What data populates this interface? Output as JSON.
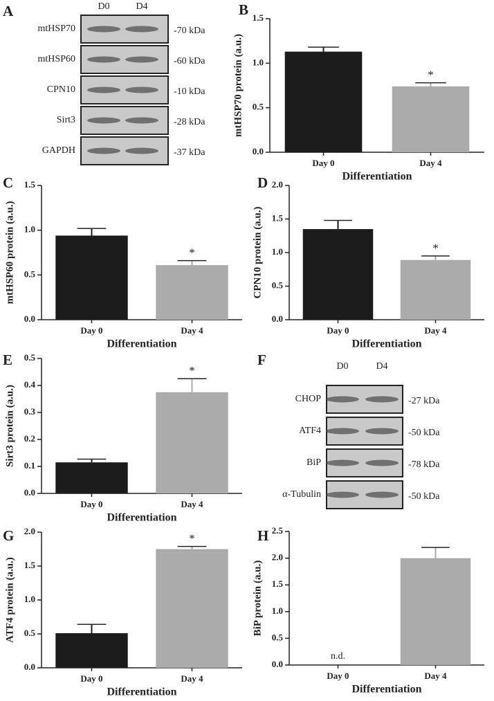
{
  "chart_data": [
    {
      "type": "bar",
      "panel_label": "B",
      "y_label": "mtHSP70 protein (a.u.)",
      "x_label": "Differentiation",
      "categories": [
        "Day 0",
        "Day 4"
      ],
      "values": [
        1.13,
        0.74
      ],
      "errors": [
        0.05,
        0.04
      ],
      "colors": [
        "#1c1c1c",
        "#ababab"
      ],
      "significance": [
        null,
        "*"
      ],
      "ylim": [
        0,
        1.5
      ],
      "yticks": [
        {
          "value": 0,
          "label": "0.0"
        },
        0.5,
        {
          "value": 1,
          "label": "1.0"
        },
        1.5
      ]
    },
    {
      "type": "bar",
      "panel_label": "C",
      "y_label": "mtHSP60 protein (a.u.)",
      "x_label": "Differentiation",
      "categories": [
        "Day 0",
        "Day 4"
      ],
      "values": [
        0.94,
        0.61
      ],
      "errors": [
        0.08,
        0.05
      ],
      "colors": [
        "#1c1c1c",
        "#ababab"
      ],
      "significance": [
        null,
        "*"
      ],
      "ylim": [
        0,
        1.5
      ],
      "yticks": [
        {
          "value": 0,
          "label": "0.0"
        },
        0.5,
        {
          "value": 1,
          "label": "1.0"
        },
        1.5
      ]
    },
    {
      "type": "bar",
      "panel_label": "D",
      "y_label": "CPN10 protein  (a.u.)",
      "x_label": "Differentiation",
      "categories": [
        "Day 0",
        "Day 4"
      ],
      "values": [
        1.35,
        0.89
      ],
      "errors": [
        0.13,
        0.06
      ],
      "colors": [
        "#1c1c1c",
        "#ababab"
      ],
      "significance": [
        null,
        "*"
      ],
      "ylim": [
        0,
        2
      ],
      "yticks": [
        {
          "value": 0,
          "label": "0.0"
        },
        0.5,
        {
          "value": 1,
          "label": "1.0"
        },
        1.5,
        {
          "value": 2,
          "label": "2.0"
        }
      ]
    },
    {
      "type": "bar",
      "panel_label": "E",
      "y_label": "Sirt3 protein (a.u.)",
      "x_label": "Differentiation",
      "categories": [
        "Day 0",
        "Day 4"
      ],
      "values": [
        0.115,
        0.375
      ],
      "errors": [
        0.012,
        0.05
      ],
      "colors": [
        "#1c1c1c",
        "#ababab"
      ],
      "significance": [
        null,
        "*"
      ],
      "ylim": [
        0,
        0.5
      ],
      "yticks": [
        {
          "value": 0,
          "label": "0.0"
        },
        0.1,
        0.2,
        0.3,
        0.4,
        0.5
      ]
    },
    {
      "type": "bar",
      "panel_label": "G",
      "y_label": "ATF4 protein (a.u.)",
      "x_label": "Differentiation",
      "categories": [
        "Day 0",
        "Day 4"
      ],
      "values": [
        0.51,
        1.75
      ],
      "errors": [
        0.13,
        0.04
      ],
      "colors": [
        "#1c1c1c",
        "#ababab"
      ],
      "significance": [
        null,
        "*"
      ],
      "ylim": [
        0,
        2
      ],
      "yticks": [
        {
          "value": 0,
          "label": "0.0"
        },
        0.5,
        {
          "value": 1,
          "label": "1.0"
        },
        1.5,
        {
          "value": 2,
          "label": "2.0"
        }
      ]
    },
    {
      "type": "bar",
      "panel_label": "H",
      "y_label": "BiP protein (a.u.)",
      "x_label": "Differentiation",
      "categories": [
        "Day 0",
        "Day 4"
      ],
      "values": [
        null,
        2.0
      ],
      "errors": [
        null,
        0.2
      ],
      "colors": [
        "#1c1c1c",
        "#ababab"
      ],
      "value_labels": [
        "n.d.",
        null
      ],
      "ylim": [
        0,
        2.5
      ],
      "yticks": [
        {
          "value": 0,
          "label": "0.0"
        },
        0.5,
        {
          "value": 1,
          "label": "1.0"
        },
        1.5,
        {
          "value": 2,
          "label": "2.0"
        },
        2.5
      ]
    }
  ],
  "blots": [
    {
      "panel_label": "A",
      "lanes": [
        "D0",
        "D4"
      ],
      "rows": [
        {
          "protein": "mtHSP70",
          "size": "-70 kDa"
        },
        {
          "protein": "mtHSP60",
          "size": "-60 kDa"
        },
        {
          "protein": "CPN10",
          "size": "-10 kDa"
        },
        {
          "protein": "Sirt3",
          "size": "-28 kDa"
        },
        {
          "protein": "GAPDH",
          "size": "-37 kDa"
        }
      ]
    },
    {
      "panel_label": "F",
      "lanes": [
        "D0",
        "D4"
      ],
      "rows": [
        {
          "protein": "CHOP",
          "size": "-27 kDa"
        },
        {
          "protein": "ATF4",
          "size": "-50 kDa"
        },
        {
          "protein": "BiP",
          "size": "-78 kDa"
        },
        {
          "protein": "α-Tubulin",
          "size": "-50 kDa"
        }
      ]
    }
  ]
}
